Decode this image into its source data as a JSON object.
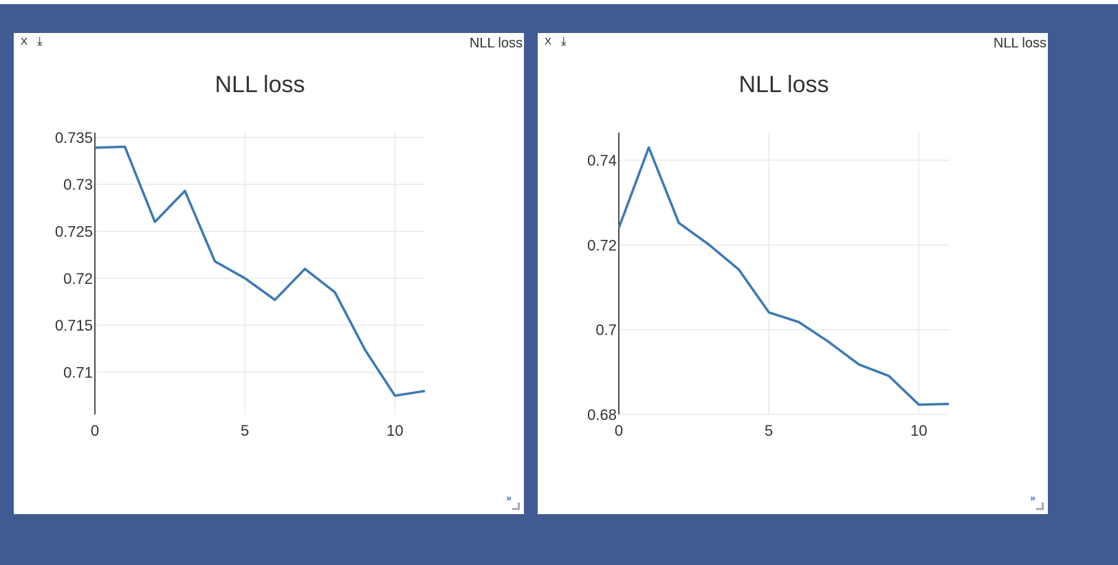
{
  "colors": {
    "background": "#3f5b91",
    "pane": "#ffffff",
    "series": "#3d78b4",
    "grid": "#e6e6e6"
  },
  "panes": [
    {
      "close_label": "X",
      "download_icon": "download-icon",
      "download_label": "⤓",
      "pane_title": "NLL loss",
      "expand_label": "»",
      "chart_data": {
        "type": "line",
        "title": "NLL loss",
        "xlabel": "",
        "ylabel": "",
        "x": [
          0,
          1,
          2,
          3,
          4,
          5,
          6,
          7,
          8,
          9,
          10,
          11
        ],
        "series": [
          {
            "name": "NLL loss",
            "values": [
              0.7339,
              0.734,
              0.726,
              0.7293,
              0.7218,
              0.72,
              0.7177,
              0.721,
              0.7185,
              0.7124,
              0.7075,
              0.708
            ]
          }
        ],
        "xlim": [
          0,
          11
        ],
        "ylim": [
          0.7055,
          0.7355
        ],
        "xticks": [
          0,
          5,
          10
        ],
        "xtick_labels": [
          "0",
          "5",
          "10"
        ],
        "yticks": [
          0.71,
          0.715,
          0.72,
          0.725,
          0.73,
          0.735
        ],
        "ytick_labels": [
          "0.71",
          "0.715",
          "0.72",
          "0.725",
          "0.73",
          "0.735"
        ],
        "grid": true
      }
    },
    {
      "close_label": "X",
      "download_icon": "download-icon",
      "download_label": "⤓",
      "pane_title": "NLL loss",
      "expand_label": "»",
      "chart_data": {
        "type": "line",
        "title": "NLL loss",
        "xlabel": "",
        "ylabel": "",
        "x": [
          0,
          1,
          2,
          3,
          4,
          5,
          6,
          7,
          8,
          9,
          10,
          11
        ],
        "series": [
          {
            "name": "NLL loss",
            "values": [
              0.724,
              0.743,
              0.7252,
              0.7201,
              0.7142,
              0.7041,
              0.7018,
              0.6971,
              0.6918,
              0.6891,
              0.6823,
              0.6825
            ]
          }
        ],
        "xlim": [
          0,
          11
        ],
        "ylim": [
          0.68,
          0.7465
        ],
        "xticks": [
          0,
          5,
          10
        ],
        "xtick_labels": [
          "0",
          "5",
          "10"
        ],
        "yticks": [
          0.68,
          0.7,
          0.72,
          0.74
        ],
        "ytick_labels": [
          "0.68",
          "0.7",
          "0.72",
          "0.74"
        ],
        "grid": true
      }
    }
  ]
}
